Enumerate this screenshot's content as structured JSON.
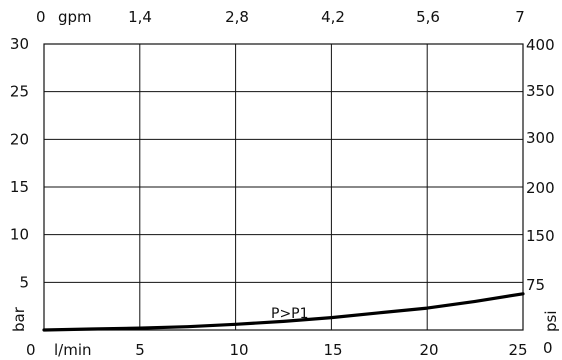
{
  "chart_data": {
    "type": "line",
    "x": [
      0,
      5,
      10,
      15,
      20,
      25
    ],
    "xlim": [
      0,
      25
    ],
    "x_ticks": [
      "0",
      "5",
      "10",
      "15",
      "20",
      "25"
    ],
    "xlabel": "l/min",
    "x2_ticks": [
      "0",
      "1,4",
      "2,8",
      "4,2",
      "5,6",
      "7"
    ],
    "x2label": "gpm",
    "ylim": [
      0,
      30
    ],
    "y_ticks": [
      "30",
      "25",
      "20",
      "15",
      "10",
      "5"
    ],
    "ylabel": "bar",
    "y2_ticks": [
      "400",
      "350",
      "300",
      "200",
      "150",
      "75",
      "0"
    ],
    "y2label": "psi",
    "grid": true,
    "series": [
      {
        "name": "P>P1",
        "x": [
          0,
          2.5,
          5,
          7.5,
          10,
          12.5,
          15,
          17.5,
          20,
          22.5,
          25
        ],
        "values": [
          0,
          0.1,
          0.2,
          0.35,
          0.6,
          0.9,
          1.3,
          1.8,
          2.3,
          3.0,
          3.8
        ]
      }
    ],
    "annotation": {
      "text": "P>P1"
    }
  }
}
